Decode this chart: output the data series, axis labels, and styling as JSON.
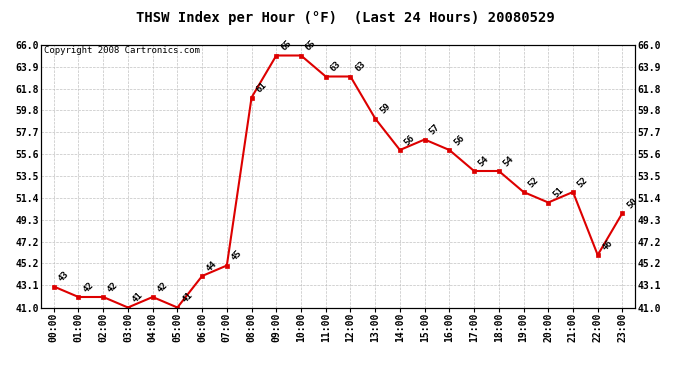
{
  "title": "THSW Index per Hour (°F)  (Last 24 Hours) 20080529",
  "copyright": "Copyright 2008 Cartronics.com",
  "hours": [
    "00:00",
    "01:00",
    "02:00",
    "03:00",
    "04:00",
    "05:00",
    "06:00",
    "07:00",
    "08:00",
    "09:00",
    "10:00",
    "11:00",
    "12:00",
    "13:00",
    "14:00",
    "15:00",
    "16:00",
    "17:00",
    "18:00",
    "19:00",
    "20:00",
    "21:00",
    "22:00",
    "23:00"
  ],
  "values": [
    43,
    42,
    42,
    41,
    42,
    41,
    44,
    45,
    61,
    65,
    65,
    63,
    63,
    59,
    56,
    57,
    56,
    54,
    54,
    52,
    51,
    52,
    46,
    50
  ],
  "ylim_min": 41.0,
  "ylim_max": 66.0,
  "yticks": [
    41.0,
    43.1,
    45.2,
    47.2,
    49.3,
    51.4,
    53.5,
    55.6,
    57.7,
    59.8,
    61.8,
    63.9,
    66.0
  ],
  "line_color": "#dd0000",
  "marker_color": "#dd0000",
  "bg_color": "#ffffff",
  "grid_color": "#bbbbbb",
  "title_fontsize": 10,
  "tick_fontsize": 7,
  "annot_fontsize": 6.5,
  "copyright_fontsize": 6.5
}
